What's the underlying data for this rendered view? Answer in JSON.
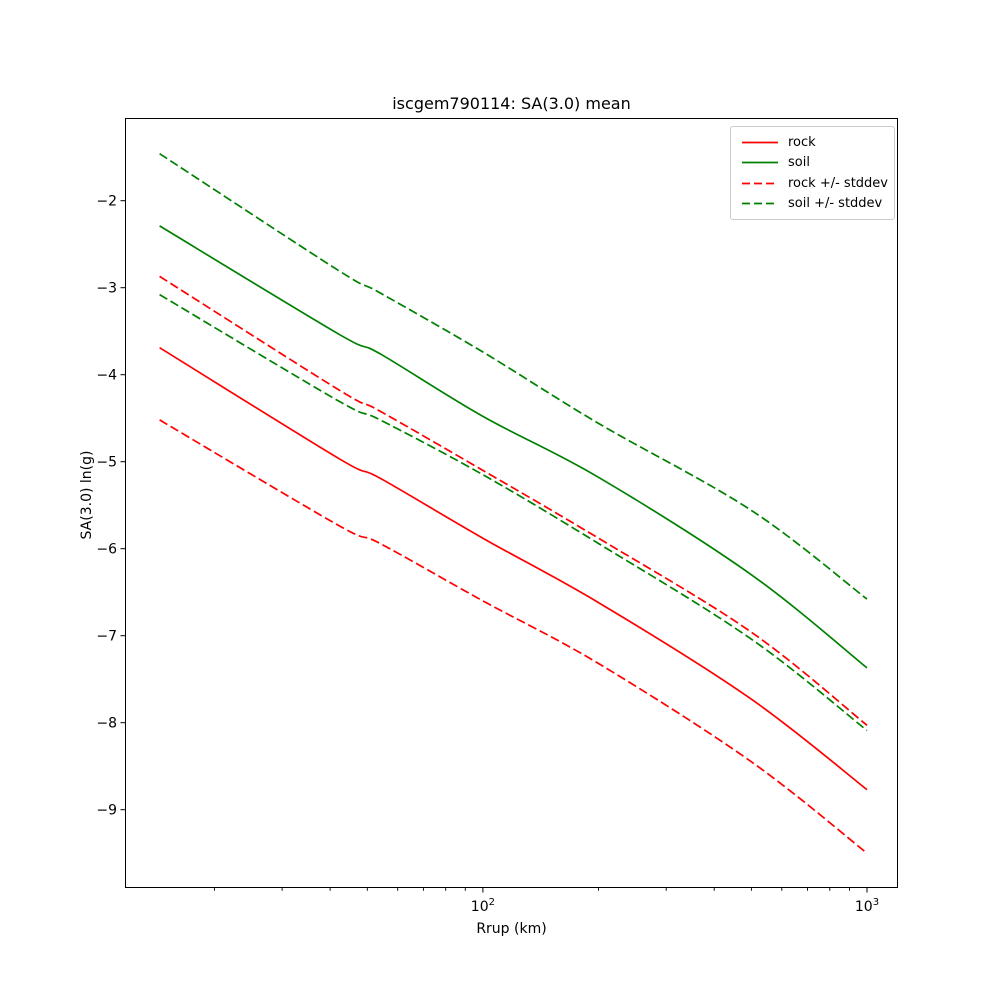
{
  "chart_data": {
    "type": "line",
    "title": "iscgem790114: SA(3.0) mean",
    "xlabel": "Rrup (km)",
    "ylabel": "SA(3.0) ln(g)",
    "x_scale": "log",
    "y_scale": "linear",
    "xlim": [
      11.7,
      1204
    ],
    "ylim": [
      -9.9,
      -1.05
    ],
    "grid": false,
    "x_major_ticks": [
      {
        "value": 100,
        "base": "10",
        "exp": "2"
      },
      {
        "value": 1000,
        "base": "10",
        "exp": "3"
      }
    ],
    "y_ticks": [
      {
        "value": -2,
        "label": "−2"
      },
      {
        "value": -3,
        "label": "−3"
      },
      {
        "value": -4,
        "label": "−4"
      },
      {
        "value": -5,
        "label": "−5"
      },
      {
        "value": -6,
        "label": "−6"
      },
      {
        "value": -7,
        "label": "−7"
      },
      {
        "value": -8,
        "label": "−8"
      },
      {
        "value": -9,
        "label": "−9"
      }
    ],
    "legend": {
      "position": "upper right",
      "entries": [
        {
          "label": "rock",
          "color": "#ff0000",
          "style": "solid"
        },
        {
          "label": "soil",
          "color": "#008000",
          "style": "solid"
        },
        {
          "label": "rock +/- stddev",
          "color": "#ff0000",
          "style": "dashed"
        },
        {
          "label": "soil +/- stddev",
          "color": "#008000",
          "style": "dashed"
        }
      ]
    },
    "x": [
      14.4,
      42,
      54,
      100,
      200,
      500,
      1000
    ],
    "series": [
      {
        "name": "rock",
        "color": "#ff0000",
        "style": "solid",
        "values": [
          -3.69,
          -4.96,
          -5.19,
          -5.88,
          -6.62,
          -7.73,
          -8.77
        ]
      },
      {
        "name": "soil",
        "color": "#008000",
        "style": "solid",
        "values": [
          -2.29,
          -3.53,
          -3.76,
          -4.48,
          -5.18,
          -6.3,
          -7.37
        ]
      },
      {
        "name": "rock +stddev",
        "color": "#ff0000",
        "style": "dashed",
        "values": [
          -2.87,
          -4.17,
          -4.42,
          -5.1,
          -5.88,
          -6.96,
          -8.03
        ]
      },
      {
        "name": "rock -stddev",
        "color": "#ff0000",
        "style": "dashed",
        "values": [
          -4.52,
          -5.73,
          -5.94,
          -6.6,
          -7.32,
          -8.45,
          -9.5
        ]
      },
      {
        "name": "soil +stddev",
        "color": "#008000",
        "style": "dashed",
        "values": [
          -1.46,
          -2.8,
          -3.06,
          -3.74,
          -4.56,
          -5.56,
          -6.58
        ]
      },
      {
        "name": "soil -stddev",
        "color": "#008000",
        "style": "dashed",
        "values": [
          -3.08,
          -4.3,
          -4.52,
          -5.15,
          -5.94,
          -7.04,
          -8.09
        ]
      }
    ]
  }
}
